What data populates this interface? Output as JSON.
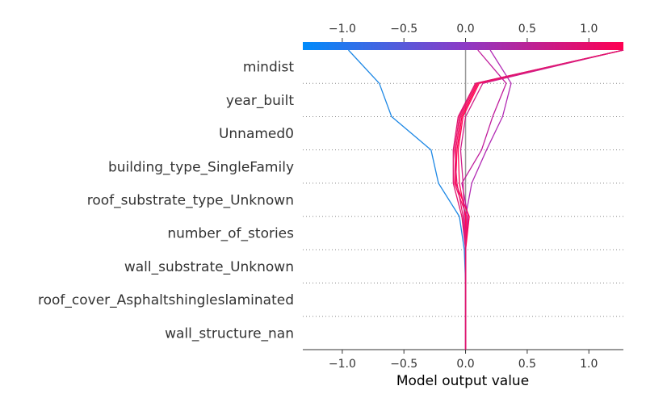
{
  "chart_data": {
    "type": "line",
    "subtype": "shap-decision-plot",
    "xlabel": "Model output value",
    "xlim": [
      -1.32,
      1.28
    ],
    "base_value": 0.0,
    "x_ticks": [
      -1.0,
      -0.5,
      0.0,
      0.5,
      1.0
    ],
    "x_tick_labels": [
      "−1.0",
      "−0.5",
      "0.0",
      "0.5",
      "1.0"
    ],
    "features": [
      "mindist",
      "year_built",
      "Unnamed0",
      "building_type_SingleFamily",
      "roof_substrate_type_Unknown",
      "number_of_stories",
      "wall_substrate_Unknown",
      "roof_cover_Asphaltshingleslaminated",
      "wall_structure_nan"
    ],
    "colorbar": {
      "colors": [
        "#008bfb",
        "#8c3bc6",
        "#ff0051"
      ],
      "range": [
        -1.32,
        1.28
      ]
    },
    "grid": "dotted horizontal",
    "series": [
      {
        "color": "#1e88e5",
        "values": [
          -0.95,
          -0.7,
          -0.6,
          -0.28,
          -0.22,
          -0.05,
          -0.01,
          0.0,
          0.0,
          0.0
        ]
      },
      {
        "color": "#b22bb5",
        "values": [
          0.2,
          0.37,
          0.3,
          0.17,
          0.05,
          0.0,
          0.0,
          0.0,
          0.0,
          0.0
        ]
      },
      {
        "color": "#c01c9c",
        "values": [
          0.1,
          0.33,
          0.22,
          0.13,
          -0.03,
          0.02,
          0.0,
          0.0,
          0.0,
          0.0
        ]
      },
      {
        "color": "#ff0051",
        "values": [
          1.28,
          0.1,
          -0.03,
          -0.07,
          -0.08,
          0.03,
          0.0,
          0.0,
          0.0,
          0.0
        ]
      },
      {
        "color": "#f01566",
        "values": [
          1.28,
          0.09,
          -0.04,
          -0.08,
          -0.09,
          0.01,
          0.0,
          0.0,
          0.0,
          0.0
        ]
      },
      {
        "color": "#e8176e",
        "values": [
          1.28,
          0.08,
          -0.05,
          -0.09,
          -0.07,
          -0.02,
          0.0,
          0.0,
          0.0,
          0.0
        ]
      },
      {
        "color": "#ff0a55",
        "values": [
          1.28,
          0.11,
          -0.02,
          -0.06,
          -0.05,
          0.0,
          0.0,
          0.0,
          0.0,
          0.0
        ]
      },
      {
        "color": "#d0208a",
        "values": [
          1.28,
          0.14,
          0.0,
          -0.04,
          -0.02,
          -0.01,
          0.0,
          0.0,
          0.0,
          0.0
        ]
      },
      {
        "color": "#e0156f",
        "values": [
          1.28,
          0.08,
          -0.06,
          -0.1,
          -0.1,
          -0.03,
          0.0,
          0.0,
          0.0,
          0.0
        ]
      }
    ]
  }
}
